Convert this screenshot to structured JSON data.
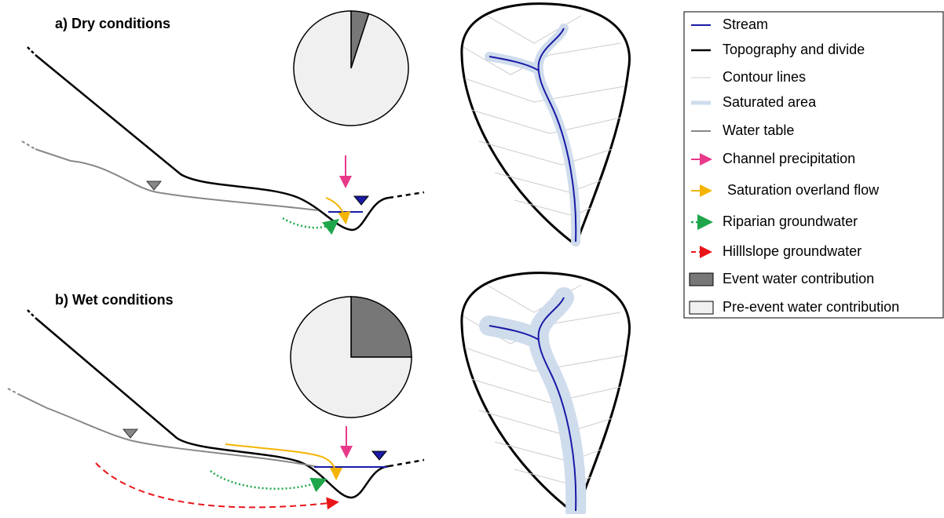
{
  "panels": [
    {
      "title": "a) Dry conditions",
      "pie": {
        "event": 5,
        "pre_event": 95
      }
    },
    {
      "title": "b) Wet conditions",
      "pie": {
        "event": 25,
        "pre_event": 75
      }
    }
  ],
  "legend": [
    "Stream",
    "Topography and divide",
    "Contour lines",
    "Saturated area",
    "Water table",
    "Channel precipitation",
    "Saturation overland flow",
    "Riparian groundwater",
    "Hilllslope groundwater",
    "Event water contribution",
    "Pre-event water contribution"
  ]
}
